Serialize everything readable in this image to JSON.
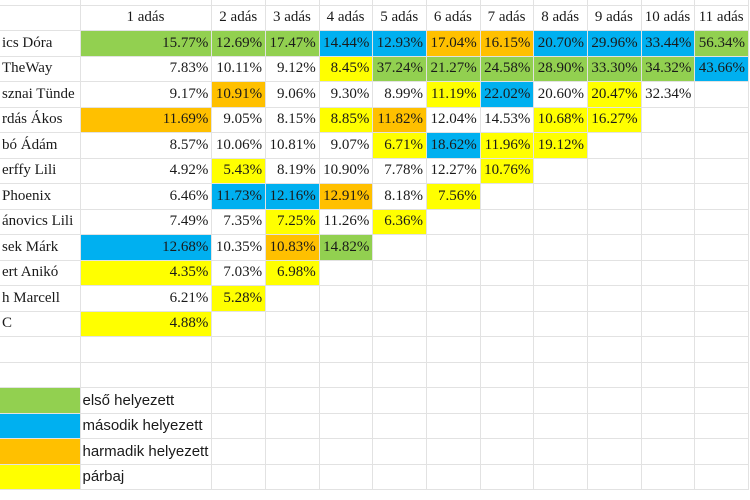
{
  "colors": {
    "first": "#92d050",
    "second": "#00b0f0",
    "third": "#ffc000",
    "duel": "#ffff00"
  },
  "header": [
    "1 adás",
    "2 adás",
    "3 adás",
    "4 adás",
    "5 adás",
    "6 adás",
    "7 adás",
    "8 adás",
    "9 adás",
    "10 adás",
    "11 adás"
  ],
  "rows": [
    {
      "name": "ics Dóra",
      "cells": [
        [
          "15.77%",
          "green"
        ],
        [
          "12.69%",
          "green"
        ],
        [
          "17.47%",
          "green"
        ],
        [
          "14.44%",
          "blue"
        ],
        [
          "12.93%",
          "blue"
        ],
        [
          "17.04%",
          "orange"
        ],
        [
          "16.15%",
          "orange"
        ],
        [
          "20.70%",
          "blue"
        ],
        [
          "29.96%",
          "blue"
        ],
        [
          "33.44%",
          "blue"
        ],
        [
          "56.34%",
          "green"
        ]
      ]
    },
    {
      "name": "TheWay",
      "cells": [
        [
          "7.83%",
          ""
        ],
        [
          "10.11%",
          ""
        ],
        [
          "9.12%",
          ""
        ],
        [
          "8.45%",
          "yellow"
        ],
        [
          "37.24%",
          "green"
        ],
        [
          "21.27%",
          "green"
        ],
        [
          "24.58%",
          "green"
        ],
        [
          "28.90%",
          "green"
        ],
        [
          "33.30%",
          "green"
        ],
        [
          "34.32%",
          "green"
        ],
        [
          "43.66%",
          "blue"
        ]
      ]
    },
    {
      "name": "sznai Tünde",
      "cells": [
        [
          "9.17%",
          ""
        ],
        [
          "10.91%",
          "orange"
        ],
        [
          "9.06%",
          ""
        ],
        [
          "9.30%",
          ""
        ],
        [
          "8.99%",
          ""
        ],
        [
          "11.19%",
          "yellow"
        ],
        [
          "22.02%",
          "blue"
        ],
        [
          "20.60%",
          ""
        ],
        [
          "20.47%",
          "yellow"
        ],
        [
          "32.34%",
          ""
        ],
        [
          "",
          ""
        ]
      ]
    },
    {
      "name": "rdás Ákos",
      "cells": [
        [
          "11.69%",
          "orange"
        ],
        [
          "9.05%",
          ""
        ],
        [
          "8.15%",
          ""
        ],
        [
          "8.85%",
          "yellow"
        ],
        [
          "11.82%",
          "orange"
        ],
        [
          "12.04%",
          ""
        ],
        [
          "14.53%",
          ""
        ],
        [
          "10.68%",
          "yellow"
        ],
        [
          "16.27%",
          "yellow"
        ],
        [
          "",
          ""
        ],
        [
          "",
          ""
        ]
      ]
    },
    {
      "name": "bó Ádám",
      "cells": [
        [
          "8.57%",
          ""
        ],
        [
          "10.06%",
          ""
        ],
        [
          "10.81%",
          ""
        ],
        [
          "9.07%",
          ""
        ],
        [
          "6.71%",
          "yellow"
        ],
        [
          "18.62%",
          "blue"
        ],
        [
          "11.96%",
          "yellow"
        ],
        [
          "19.12%",
          "yellow"
        ],
        [
          "",
          ""
        ],
        [
          "",
          ""
        ],
        [
          "",
          ""
        ]
      ]
    },
    {
      "name": "erffy Lili",
      "cells": [
        [
          "4.92%",
          ""
        ],
        [
          "5.43%",
          "yellow"
        ],
        [
          "8.19%",
          ""
        ],
        [
          "10.90%",
          ""
        ],
        [
          "7.78%",
          ""
        ],
        [
          "12.27%",
          ""
        ],
        [
          "10.76%",
          "yellow"
        ],
        [
          "",
          ""
        ],
        [
          "",
          ""
        ],
        [
          "",
          ""
        ],
        [
          "",
          ""
        ]
      ]
    },
    {
      "name": "Phoenix",
      "cells": [
        [
          "6.46%",
          ""
        ],
        [
          "11.73%",
          "blue"
        ],
        [
          "12.16%",
          "blue"
        ],
        [
          "12.91%",
          "orange"
        ],
        [
          "8.18%",
          ""
        ],
        [
          "7.56%",
          "yellow"
        ],
        [
          "",
          ""
        ],
        [
          "",
          ""
        ],
        [
          "",
          ""
        ],
        [
          "",
          ""
        ],
        [
          "",
          ""
        ]
      ]
    },
    {
      "name": "ánovics Lili",
      "cells": [
        [
          "7.49%",
          ""
        ],
        [
          "7.35%",
          ""
        ],
        [
          "7.25%",
          "yellow"
        ],
        [
          "11.26%",
          ""
        ],
        [
          "6.36%",
          "yellow"
        ],
        [
          "",
          ""
        ],
        [
          "",
          ""
        ],
        [
          "",
          ""
        ],
        [
          "",
          ""
        ],
        [
          "",
          ""
        ],
        [
          "",
          ""
        ]
      ]
    },
    {
      "name": "sek Márk",
      "cells": [
        [
          "12.68%",
          "blue"
        ],
        [
          "10.35%",
          ""
        ],
        [
          "10.83%",
          "orange"
        ],
        [
          "14.82%",
          "green"
        ],
        [
          "",
          ""
        ],
        [
          "",
          ""
        ],
        [
          "",
          ""
        ],
        [
          "",
          ""
        ],
        [
          "",
          ""
        ],
        [
          "",
          ""
        ],
        [
          "",
          ""
        ]
      ]
    },
    {
      "name": "ert Anikó",
      "cells": [
        [
          "4.35%",
          "yellow"
        ],
        [
          "7.03%",
          ""
        ],
        [
          "6.98%",
          "yellow"
        ],
        [
          "",
          ""
        ],
        [
          "",
          ""
        ],
        [
          "",
          ""
        ],
        [
          "",
          ""
        ],
        [
          "",
          ""
        ],
        [
          "",
          ""
        ],
        [
          "",
          ""
        ],
        [
          "",
          ""
        ]
      ]
    },
    {
      "name": "h Marcell",
      "cells": [
        [
          "6.21%",
          ""
        ],
        [
          "5.28%",
          "yellow"
        ],
        [
          "",
          ""
        ],
        [
          "",
          ""
        ],
        [
          "",
          ""
        ],
        [
          "",
          ""
        ],
        [
          "",
          ""
        ],
        [
          "",
          ""
        ],
        [
          "",
          ""
        ],
        [
          "",
          ""
        ],
        [
          "",
          ""
        ]
      ]
    },
    {
      "name": "C",
      "cells": [
        [
          "4.88%",
          "yellow"
        ],
        [
          "",
          ""
        ],
        [
          "",
          ""
        ],
        [
          "",
          ""
        ],
        [
          "",
          ""
        ],
        [
          "",
          ""
        ],
        [
          "",
          ""
        ],
        [
          "",
          ""
        ],
        [
          "",
          ""
        ],
        [
          "",
          ""
        ],
        [
          "",
          ""
        ]
      ]
    }
  ],
  "legend": [
    {
      "color": "green",
      "label": "első helyezett"
    },
    {
      "color": "blue",
      "label": "második helyezett"
    },
    {
      "color": "orange",
      "label": "harmadik helyezett"
    },
    {
      "color": "yellow",
      "label": "párbaj"
    }
  ]
}
